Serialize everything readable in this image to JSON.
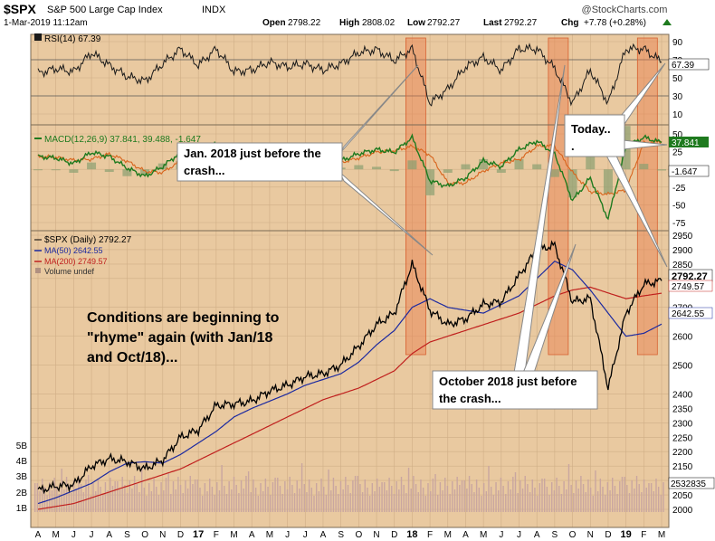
{
  "header": {
    "symbol": "$SPX",
    "name": "S&P 500 Large Cap Index",
    "exchange": "INDX",
    "date_time": "1-Mar-2019 11:12am",
    "open_label": "Open",
    "open": "2798.22",
    "high_label": "High",
    "high": "2808.02",
    "low_label": "Low",
    "low": "2792.27",
    "last_label": "Last",
    "last": "2792.27",
    "chg_label": "Chg",
    "chg": "+7.78 (+0.28%)",
    "watermark": "@StockCharts.com"
  },
  "colors": {
    "background": "#E9C9A0",
    "panel_line": "#7A6A55",
    "grid": "#CFAE86",
    "price": "#000000",
    "ma50": "#1C2AA0",
    "ma200": "#C0201E",
    "rsi": "#1A1A1A",
    "macd": "#1E7A1E",
    "signal": "#D8641C",
    "highlight": "#E97C4A",
    "volume": "#C9A6A0"
  },
  "rsi_panel": {
    "legend": "RSI(14) 67.39",
    "last_label": "67.39",
    "ticks": [
      "90",
      "70",
      "50",
      "30",
      "10"
    ]
  },
  "macd_panel": {
    "legend": "MACD(12,26,9) 37.841, 39.488, -1.647",
    "last_macd": "37.841",
    "last_hist": "-1.647",
    "ticks": [
      "50",
      "25",
      "0",
      "-25",
      "-50",
      "-75"
    ]
  },
  "price_panel": {
    "legend_title": "$SPX (Daily) 2792.27",
    "legend_ma50": "MA(50) 2642.55",
    "legend_ma200": "MA(200) 2749.57",
    "legend_volume": "Volume undef",
    "last_price": "2792.27",
    "last_ma200": "2749.57",
    "last_ma50": "2642.55",
    "last_volume": "2532835",
    "ticks": [
      "2950",
      "2900",
      "2850",
      "2800",
      "2700",
      "2600",
      "2500",
      "2400",
      "2350",
      "2300",
      "2250",
      "2200",
      "2150",
      "2100",
      "2050",
      "2000"
    ],
    "volume_ticks": [
      "5B",
      "4B",
      "3B",
      "2B",
      "1B"
    ]
  },
  "x_axis": [
    "A",
    "M",
    "J",
    "J",
    "A",
    "S",
    "O",
    "N",
    "D",
    "17",
    "F",
    "M",
    "A",
    "M",
    "J",
    "J",
    "A",
    "S",
    "O",
    "N",
    "D",
    "18",
    "F",
    "M",
    "A",
    "M",
    "J",
    "J",
    "A",
    "S",
    "O",
    "N",
    "D",
    "19",
    "F",
    "M"
  ],
  "annotations": {
    "jan_2018": "Jan. 2018 just before the crash...",
    "today": "Today.. .",
    "october_2018": "October 2018 just before the crash...",
    "conditions": "Conditions are beginning to \"rhyme\" again (with Jan/18 and Oct/18)..."
  },
  "chart_data": {
    "type": "line",
    "title": "$SPX S&P 500 Large Cap Index",
    "x": [
      "2016-04",
      "2016-05",
      "2016-06",
      "2016-07",
      "2016-08",
      "2016-09",
      "2016-10",
      "2016-11",
      "2016-12",
      "2017-01",
      "2017-02",
      "2017-03",
      "2017-04",
      "2017-05",
      "2017-06",
      "2017-07",
      "2017-08",
      "2017-09",
      "2017-10",
      "2017-11",
      "2017-12",
      "2018-01",
      "2018-02",
      "2018-03",
      "2018-04",
      "2018-05",
      "2018-06",
      "2018-07",
      "2018-08",
      "2018-09",
      "2018-10",
      "2018-11",
      "2018-12",
      "2019-01",
      "2019-02",
      "2019-03"
    ],
    "series": [
      {
        "name": "$SPX (Daily)",
        "values": [
          2065,
          2080,
          2085,
          2150,
          2175,
          2165,
          2140,
          2170,
          2250,
          2275,
          2360,
          2365,
          2375,
          2410,
          2430,
          2460,
          2470,
          2500,
          2565,
          2640,
          2680,
          2850,
          2690,
          2640,
          2660,
          2710,
          2720,
          2810,
          2900,
          2915,
          2720,
          2730,
          2420,
          2680,
          2780,
          2792
        ]
      },
      {
        "name": "MA(50)",
        "values": [
          2020,
          2040,
          2065,
          2090,
          2130,
          2160,
          2165,
          2160,
          2190,
          2230,
          2270,
          2320,
          2350,
          2375,
          2400,
          2430,
          2450,
          2470,
          2510,
          2570,
          2620,
          2700,
          2730,
          2700,
          2690,
          2680,
          2710,
          2740,
          2800,
          2860,
          2830,
          2760,
          2680,
          2600,
          2610,
          2642
        ]
      },
      {
        "name": "MA(200)",
        "values": [
          2000,
          2010,
          2020,
          2040,
          2060,
          2080,
          2100,
          2120,
          2140,
          2170,
          2200,
          2230,
          2260,
          2290,
          2320,
          2350,
          2380,
          2400,
          2420,
          2450,
          2480,
          2540,
          2580,
          2600,
          2620,
          2640,
          2660,
          2680,
          2710,
          2740,
          2760,
          2770,
          2750,
          2730,
          2740,
          2749
        ]
      }
    ],
    "rsi": {
      "name": "RSI(14)",
      "last": 67.39,
      "ylim": [
        0,
        100
      ]
    },
    "macd": {
      "name": "MACD(12,26,9)",
      "macd": 37.841,
      "signal": 39.488,
      "histogram": -1.647,
      "ylim": [
        -85,
        60
      ]
    },
    "highlights": [
      "2018-01",
      "2018-09",
      "2019-02"
    ],
    "ylim": [
      2000,
      2950
    ],
    "grid": true,
    "legend": "top-left"
  }
}
